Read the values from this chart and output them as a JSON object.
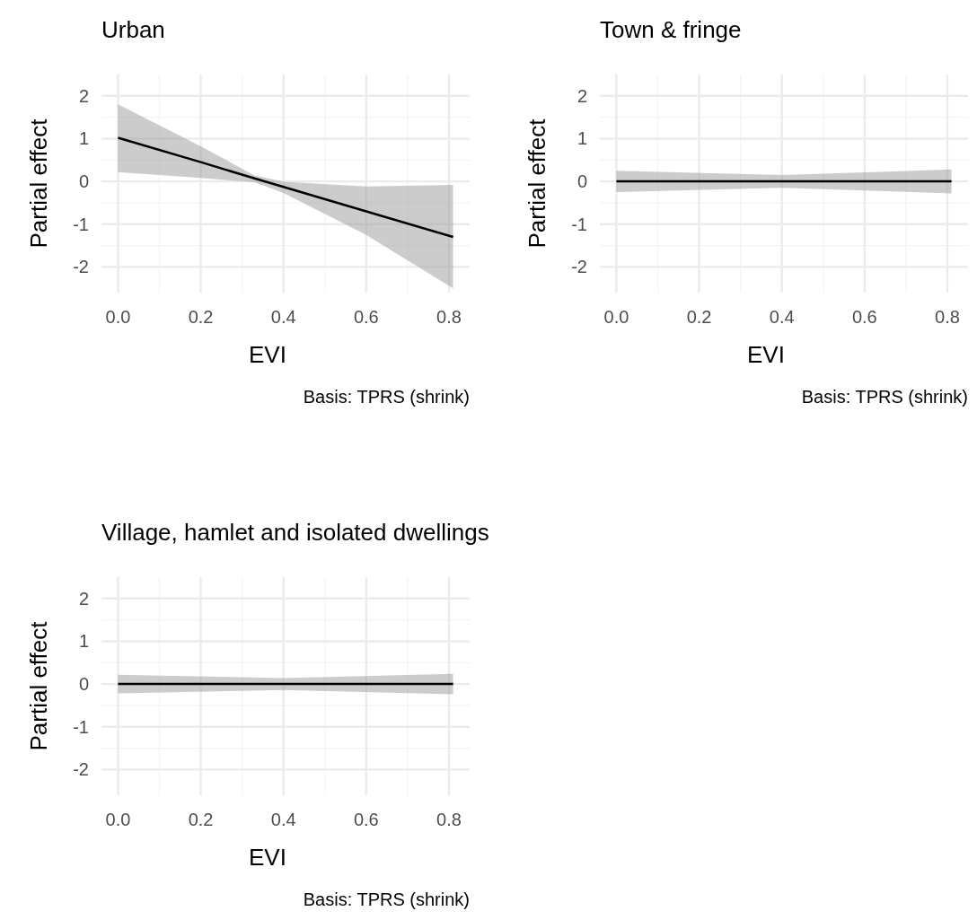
{
  "chart_data": [
    {
      "type": "line",
      "title": "Urban",
      "xlabel": "EVI",
      "ylabel": "Partial effect",
      "annotations": [
        "Basis: TPRS (shrink)"
      ],
      "grid": true,
      "xlim": [
        -0.04,
        0.85
      ],
      "ylim": [
        -2.6,
        2.5
      ],
      "xticks": [
        {
          "value": 0,
          "label": "0.0"
        },
        {
          "value": 0.2,
          "label": "0.2"
        },
        {
          "value": 0.4,
          "label": "0.4"
        },
        {
          "value": 0.6,
          "label": "0.6"
        },
        {
          "value": 0.8,
          "label": "0.8"
        }
      ],
      "yticks": [
        -2,
        -1,
        0,
        1,
        2
      ],
      "series": [
        {
          "color": "#000000",
          "x": [
            0,
            0.2,
            0.33,
            0.4,
            0.6,
            0.81
          ],
          "values": [
            1.02,
            0.45,
            0.07,
            -0.13,
            -0.7,
            -1.3
          ],
          "lower": [
            0.22,
            0.08,
            -0.02,
            -0.27,
            -1.25,
            -2.5
          ],
          "upper": [
            1.8,
            0.82,
            0.14,
            -0.01,
            -0.12,
            -0.08
          ]
        }
      ]
    },
    {
      "type": "line",
      "title": "Town & fringe",
      "xlabel": "EVI",
      "ylabel": "Partial effect",
      "annotations": [
        "Basis: TPRS (shrink)"
      ],
      "grid": true,
      "xlim": [
        -0.04,
        0.85
      ],
      "ylim": [
        -2.6,
        2.5
      ],
      "xticks": [
        {
          "value": 0,
          "label": "0.0"
        },
        {
          "value": 0.2,
          "label": "0.2"
        },
        {
          "value": 0.4,
          "label": "0.4"
        },
        {
          "value": 0.6,
          "label": "0.6"
        },
        {
          "value": 0.8,
          "label": "0.8"
        }
      ],
      "yticks": [
        -2,
        -1,
        0,
        1,
        2
      ],
      "series": [
        {
          "color": "#000000",
          "x": [
            0,
            0.4,
            0.81
          ],
          "values": [
            0,
            0,
            0
          ],
          "lower": [
            -0.25,
            -0.15,
            -0.28
          ],
          "upper": [
            0.25,
            0.15,
            0.28
          ]
        }
      ]
    },
    {
      "type": "line",
      "title": "Village, hamlet and isolated dwellings",
      "xlabel": "EVI",
      "ylabel": "Partial effect",
      "annotations": [
        "Basis: TPRS (shrink)"
      ],
      "grid": true,
      "xlim": [
        -0.04,
        0.85
      ],
      "ylim": [
        -2.6,
        2.5
      ],
      "xticks": [
        {
          "value": 0,
          "label": "0.0"
        },
        {
          "value": 0.2,
          "label": "0.2"
        },
        {
          "value": 0.4,
          "label": "0.4"
        },
        {
          "value": 0.6,
          "label": "0.6"
        },
        {
          "value": 0.8,
          "label": "0.8"
        }
      ],
      "yticks": [
        -2,
        -1,
        0,
        1,
        2
      ],
      "series": [
        {
          "color": "#000000",
          "x": [
            0,
            0.4,
            0.81
          ],
          "values": [
            0,
            0,
            0
          ],
          "lower": [
            -0.22,
            -0.14,
            -0.24
          ],
          "upper": [
            0.22,
            0.14,
            0.24
          ]
        }
      ]
    }
  ]
}
